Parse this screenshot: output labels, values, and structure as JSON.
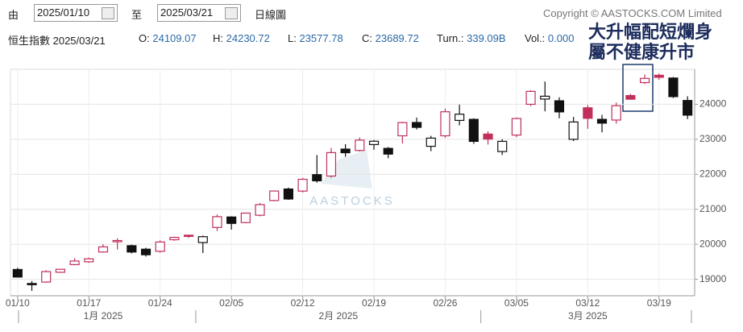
{
  "header": {
    "from_label": "由",
    "from_date": "2025/01/10",
    "to_label": "至",
    "to_date": "2025/03/21",
    "chart_kind": "日線圖",
    "copyright": "Copyright © AASTOCKS.COM Limited"
  },
  "quote": {
    "name": "恒生指數 2025/03/21",
    "open_label": "O:",
    "open": "24109.07",
    "high_label": "H:",
    "high": "24230.72",
    "low_label": "L:",
    "low": "23577.78",
    "close_label": "C:",
    "close": "23689.72",
    "turnover_label": "Turn.:",
    "turnover": "339.09B",
    "volume_label": "Vol.:",
    "volume": "0.000"
  },
  "chart_data": {
    "type": "candlestick",
    "watermark": "AASTOCKS",
    "annotation": [
      "大升幅配短爛身",
      "屬不健康升市"
    ],
    "categories": [
      "01/10",
      null,
      null,
      null,
      null,
      "01/17",
      null,
      null,
      null,
      null,
      "01/24",
      null,
      null,
      null,
      null,
      "02/05",
      null,
      null,
      null,
      null,
      "02/12",
      null,
      null,
      null,
      null,
      "02/19",
      null,
      null,
      null,
      null,
      "02/26",
      null,
      null,
      null,
      null,
      "03/05",
      null,
      null,
      null,
      null,
      "03/12",
      null,
      null,
      null,
      null,
      "03/19",
      null,
      null
    ],
    "month_labels": [
      "1月 2025",
      "2月 2025",
      "3月 2025"
    ],
    "open": [
      19280,
      18880,
      18920,
      19200,
      19420,
      19500,
      19780,
      20080,
      19960,
      19860,
      19800,
      20130,
      20260,
      20050,
      20480,
      20780,
      20620,
      20830,
      21250,
      21580,
      21520,
      21990,
      21950,
      22720,
      22680,
      22850,
      22740,
      23100,
      23480,
      22800,
      23100,
      23540,
      23570,
      23150,
      22650,
      23120,
      24000,
      24150,
      24100,
      23000,
      23900,
      23570,
      23550,
      24250,
      24620,
      24830,
      24750,
      24109.07
    ],
    "high": [
      19330,
      18950,
      19260,
      19300,
      19600,
      19620,
      20000,
      20170,
      19990,
      19900,
      20110,
      20220,
      20270,
      20250,
      20850,
      20800,
      20900,
      21180,
      21530,
      21620,
      21900,
      22550,
      22750,
      22860,
      23050,
      22980,
      22780,
      23500,
      23620,
      23100,
      23880,
      23990,
      23600,
      23230,
      23000,
      23620,
      24400,
      24650,
      24200,
      23640,
      23980,
      23700,
      24050,
      24300,
      24850,
      24880,
      24780,
      24230.72
    ],
    "low": [
      19050,
      18670,
      18900,
      19180,
      19400,
      19470,
      19760,
      19850,
      19740,
      19650,
      19760,
      20100,
      20180,
      19750,
      20380,
      20420,
      20600,
      20800,
      21230,
      21270,
      21480,
      21760,
      21900,
      22500,
      22650,
      22700,
      22460,
      22880,
      23280,
      22660,
      23040,
      23400,
      22870,
      22850,
      22550,
      23060,
      23950,
      23800,
      23600,
      22950,
      23300,
      23200,
      23450,
      24130,
      24580,
      24700,
      24180,
      23577.78
    ],
    "close": [
      19064,
      18874,
      19219,
      19286,
      19522,
      19584,
      19926,
      20107,
      19779,
      19701,
      20066,
      20198,
      20225,
      20217,
      20789,
      20597,
      20891,
      21133,
      21522,
      21294,
      21857,
      21814,
      22620,
      22616,
      22976,
      22944,
      22577,
      23477,
      23341,
      23034,
      23787,
      23718,
      22941,
      23006,
      22941,
      23594,
      24369,
      24231,
      23783,
      23495,
      23600,
      23462,
      23959,
      24145,
      24740,
      24771,
      24219,
      23689.72
    ],
    "up_color": "#c0305a",
    "down_color": "#111111",
    "ylim": [
      18530,
      25000
    ],
    "yticks": [
      19000,
      20000,
      21000,
      22000,
      23000,
      24000
    ],
    "grid": true
  }
}
